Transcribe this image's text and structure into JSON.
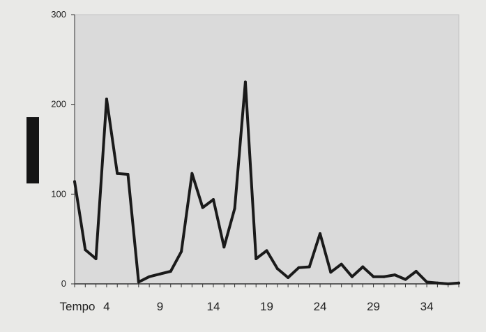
{
  "chart_data": {
    "type": "line",
    "title": "",
    "xlabel": "Tempo",
    "ylabel": "",
    "x_first": 1,
    "x_last": 37,
    "xlim": [
      1,
      37
    ],
    "ylim": [
      0,
      300
    ],
    "y_ticks": [
      0,
      100,
      200,
      300
    ],
    "x_ticks": [
      4,
      9,
      14,
      19,
      24,
      29,
      34
    ],
    "grid": false,
    "legend": "none",
    "series": [
      {
        "x": [
          1,
          2,
          3,
          4,
          5,
          6,
          7,
          8,
          9,
          10,
          11,
          12,
          13,
          14,
          15,
          16,
          17,
          18,
          19,
          20,
          21,
          22,
          23,
          24,
          25,
          26,
          27,
          28,
          29,
          30,
          31,
          32,
          33,
          34,
          35,
          36,
          37
        ],
        "values": [
          114,
          38,
          28,
          206,
          123,
          122,
          2,
          8,
          11,
          14,
          36,
          123,
          85,
          94,
          41,
          84,
          225,
          28,
          37,
          17,
          7,
          18,
          19,
          56,
          13,
          22,
          8,
          19,
          8,
          8,
          10,
          5,
          14,
          2,
          1,
          0,
          1
        ]
      }
    ],
    "colors": {
      "line": "#1a1a1a",
      "plot_background": "#dadada",
      "figure_background": "#e9e9e7",
      "ylabel_box": "#151515"
    }
  }
}
